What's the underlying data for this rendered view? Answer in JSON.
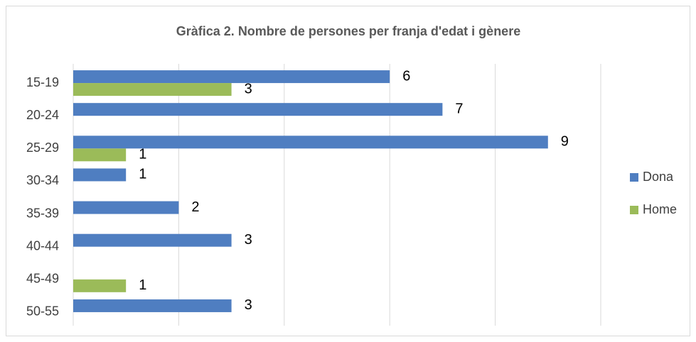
{
  "chart_data": {
    "type": "bar",
    "orientation": "horizontal",
    "title": "Gràfica 2. Nombre de persones per franja d'edat i gènere",
    "categories": [
      "15-19",
      "20-24",
      "25-29",
      "30-34",
      "35-39",
      "40-44",
      "45-49",
      "50-55"
    ],
    "series": [
      {
        "name": "Dona",
        "color": "#4f7ec1",
        "values": [
          6,
          7,
          9,
          1,
          2,
          3,
          null,
          3
        ]
      },
      {
        "name": "Home",
        "color": "#9bbb59",
        "values": [
          3,
          null,
          1,
          null,
          null,
          null,
          1,
          null
        ]
      }
    ],
    "xlim": [
      0,
      10
    ],
    "xticks": [
      0,
      2,
      4,
      6,
      8,
      10
    ],
    "grid": true,
    "legend": "right"
  }
}
